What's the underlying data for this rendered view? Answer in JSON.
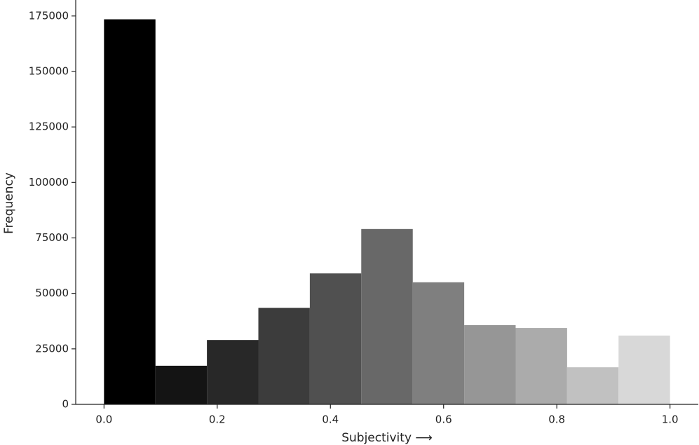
{
  "chart_data": {
    "type": "histogram",
    "xlabel": "Subjectivity ⟶",
    "ylabel": "Frequency",
    "bins": [
      0,
      0.0909,
      0.1818,
      0.2727,
      0.3636,
      0.4545,
      0.5455,
      0.6364,
      0.7273,
      0.8182,
      0.9091,
      1.0
    ],
    "values": [
      173500,
      17400,
      29000,
      43500,
      59000,
      79000,
      55000,
      35700,
      34400,
      16700,
      31000
    ],
    "colors": [
      "#000000",
      "#141414",
      "#282828",
      "#3c3c3c",
      "#505050",
      "#686868",
      "#7f7f7f",
      "#969696",
      "#ababab",
      "#c1c1c1",
      "#d8d8d8"
    ],
    "xlim": [
      -0.05,
      1.05
    ],
    "ylim": [
      0,
      182200
    ],
    "xticks": [
      {
        "value": 0,
        "label": "0.0"
      },
      0.2,
      0.4,
      0.6,
      0.8,
      {
        "value": 1,
        "label": "1.0"
      }
    ],
    "yticks": [
      0,
      25000,
      50000,
      75000,
      100000,
      125000,
      150000,
      175000
    ],
    "grid": false
  }
}
